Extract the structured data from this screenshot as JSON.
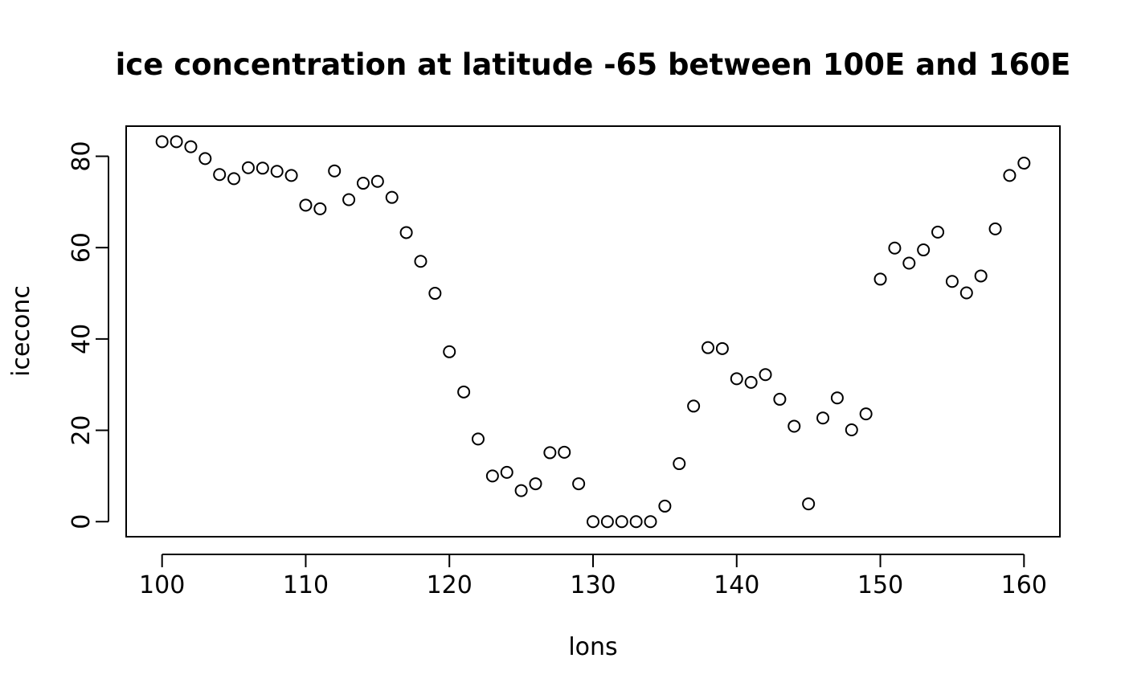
{
  "chart_data": {
    "type": "scatter",
    "title": "ice concentration at latitude -65 between 100E and 160E",
    "xlabel": "lons",
    "ylabel": "iceconc",
    "xlim": [
      97.5,
      162.5
    ],
    "ylim": [
      -3.3,
      86.6
    ],
    "x_ticks": [
      100,
      110,
      120,
      130,
      140,
      150,
      160
    ],
    "y_ticks": [
      0,
      20,
      40,
      60,
      80
    ],
    "grid": false,
    "legend": "none",
    "marker": "open-circle",
    "series": [
      {
        "x": [
          100,
          101,
          102,
          103,
          104,
          105,
          106,
          107,
          108,
          109,
          110,
          111,
          112,
          113,
          114,
          115,
          116,
          117,
          118,
          119,
          120,
          121,
          122,
          123,
          124,
          125,
          126,
          127,
          128,
          129,
          130,
          131,
          132,
          133,
          134,
          135,
          136,
          137,
          138,
          139,
          140,
          141,
          142,
          143,
          144,
          145,
          146,
          147,
          148,
          149,
          150,
          151,
          152,
          153,
          154,
          155,
          156,
          157,
          158,
          159,
          160
        ],
        "y": [
          83.2,
          83.2,
          82.1,
          79.5,
          76.0,
          75.1,
          77.5,
          77.4,
          76.7,
          75.8,
          69.3,
          68.5,
          76.8,
          70.5,
          74.1,
          74.5,
          71.0,
          63.3,
          57.0,
          50.0,
          37.2,
          28.4,
          18.1,
          10.0,
          10.8,
          6.8,
          8.3,
          15.1,
          15.2,
          8.3,
          0.0,
          0.0,
          0.0,
          0.0,
          0.0,
          3.4,
          12.7,
          25.3,
          38.1,
          37.9,
          31.3,
          30.5,
          32.2,
          26.8,
          20.9,
          3.9,
          22.7,
          27.1,
          20.1,
          23.6,
          53.1,
          59.9,
          56.6,
          59.5,
          63.4,
          52.6,
          50.1,
          53.8,
          64.1,
          75.8,
          78.5
        ]
      }
    ]
  }
}
